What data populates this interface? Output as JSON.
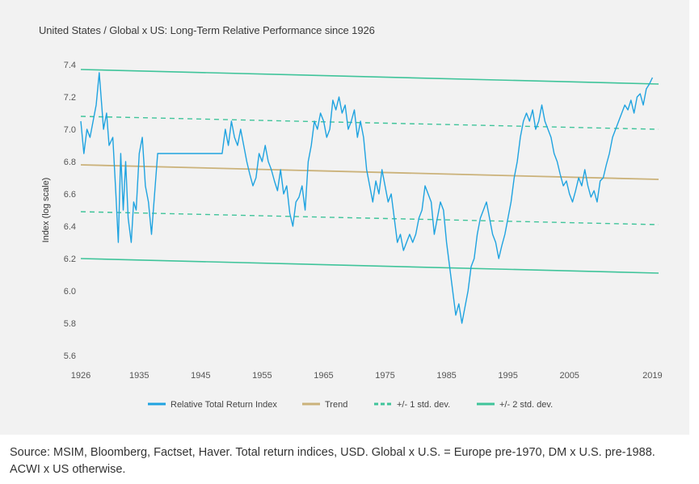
{
  "title": "United States / Global x US: Long-Term Relative Performance since 1926",
  "source": "Source: MSIM, Bloomberg, Factset, Haver. Total return indices, USD. Global x U.S. = Europe pre-1970, DM x U.S. pre-1988. ACWI x US otherwise.",
  "colors": {
    "relative": "#1fa3e0",
    "trend": "#cbb27a",
    "std1": "#3fc49a",
    "std2": "#3fc49a",
    "panel": "#f2f2f2"
  },
  "chart_data": {
    "type": "line",
    "title": "United States / Global x US: Long-Term Relative Performance since 1926",
    "xlabel": "",
    "ylabel": "Index (log scale)",
    "xlim": [
      1926,
      2020
    ],
    "ylim": [
      5.6,
      7.4
    ],
    "xticks": [
      "1926",
      "1935",
      "1945",
      "1955",
      "1965",
      "1975",
      "1985",
      "1995",
      "2005",
      "2019"
    ],
    "xtick_values": [
      1926,
      1935.5,
      1945.5,
      1955.5,
      1965.5,
      1975.5,
      1985.5,
      1995.5,
      2005.5,
      2019
    ],
    "yticks": [
      "7.4",
      "7.2",
      "7.0",
      "6.8",
      "6.6",
      "6.4",
      "6.2",
      "6.0",
      "5.8",
      "5.6"
    ],
    "ytick_values": [
      7.4,
      7.2,
      7.0,
      6.8,
      6.6,
      6.4,
      6.2,
      6.0,
      5.8,
      5.6
    ],
    "legend": [
      {
        "key": "relative",
        "label": "Relative Total Return Index",
        "style": "solid"
      },
      {
        "key": "trend",
        "label": "Trend",
        "style": "solid"
      },
      {
        "key": "std1",
        "label": "+/- 1 std. dev.",
        "style": "dashed"
      },
      {
        "key": "std2",
        "label": "+/- 2 std. dev.",
        "style": "solid"
      }
    ],
    "legend_position": "bottom",
    "series": [
      {
        "name": "Relative Total Return Index",
        "key": "relative",
        "points": [
          [
            1926.0,
            7.05
          ],
          [
            1926.5,
            6.85
          ],
          [
            1927.0,
            7.0
          ],
          [
            1927.5,
            6.95
          ],
          [
            1928.0,
            7.05
          ],
          [
            1928.5,
            7.15
          ],
          [
            1929.0,
            7.35
          ],
          [
            1929.3,
            7.2
          ],
          [
            1929.7,
            7.0
          ],
          [
            1930.2,
            7.1
          ],
          [
            1930.6,
            6.9
          ],
          [
            1931.2,
            6.95
          ],
          [
            1931.7,
            6.6
          ],
          [
            1932.1,
            6.3
          ],
          [
            1932.5,
            6.85
          ],
          [
            1932.9,
            6.5
          ],
          [
            1933.3,
            6.8
          ],
          [
            1933.7,
            6.45
          ],
          [
            1934.2,
            6.3
          ],
          [
            1934.6,
            6.55
          ],
          [
            1935.0,
            6.5
          ],
          [
            1935.5,
            6.85
          ],
          [
            1936.0,
            6.95
          ],
          [
            1936.5,
            6.65
          ],
          [
            1937.0,
            6.55
          ],
          [
            1937.5,
            6.35
          ],
          [
            1938.0,
            6.6
          ],
          [
            1938.5,
            6.85
          ],
          [
            1939.0,
            6.85
          ],
          [
            1949.0,
            6.85
          ],
          [
            1949.5,
            7.0
          ],
          [
            1950.0,
            6.9
          ],
          [
            1950.5,
            7.05
          ],
          [
            1951.0,
            6.95
          ],
          [
            1951.5,
            6.9
          ],
          [
            1952.0,
            7.0
          ],
          [
            1952.5,
            6.9
          ],
          [
            1953.0,
            6.8
          ],
          [
            1953.5,
            6.72
          ],
          [
            1954.0,
            6.65
          ],
          [
            1954.5,
            6.7
          ],
          [
            1955.0,
            6.85
          ],
          [
            1955.5,
            6.8
          ],
          [
            1956.0,
            6.9
          ],
          [
            1956.5,
            6.8
          ],
          [
            1957.0,
            6.75
          ],
          [
            1957.5,
            6.68
          ],
          [
            1958.0,
            6.62
          ],
          [
            1958.5,
            6.75
          ],
          [
            1959.0,
            6.6
          ],
          [
            1959.5,
            6.65
          ],
          [
            1960.0,
            6.48
          ],
          [
            1960.5,
            6.4
          ],
          [
            1961.0,
            6.55
          ],
          [
            1961.5,
            6.58
          ],
          [
            1962.0,
            6.65
          ],
          [
            1962.5,
            6.5
          ],
          [
            1963.0,
            6.8
          ],
          [
            1963.5,
            6.9
          ],
          [
            1964.0,
            7.05
          ],
          [
            1964.5,
            7.0
          ],
          [
            1965.0,
            7.1
          ],
          [
            1965.5,
            7.05
          ],
          [
            1966.0,
            6.95
          ],
          [
            1966.5,
            7.0
          ],
          [
            1967.0,
            7.18
          ],
          [
            1967.5,
            7.12
          ],
          [
            1968.0,
            7.2
          ],
          [
            1968.5,
            7.1
          ],
          [
            1969.0,
            7.15
          ],
          [
            1969.5,
            7.0
          ],
          [
            1970.0,
            7.05
          ],
          [
            1970.5,
            7.12
          ],
          [
            1971.0,
            6.95
          ],
          [
            1971.5,
            7.05
          ],
          [
            1972.0,
            6.95
          ],
          [
            1972.5,
            6.75
          ],
          [
            1973.0,
            6.65
          ],
          [
            1973.5,
            6.55
          ],
          [
            1974.0,
            6.68
          ],
          [
            1974.5,
            6.6
          ],
          [
            1975.0,
            6.75
          ],
          [
            1975.5,
            6.65
          ],
          [
            1976.0,
            6.55
          ],
          [
            1976.5,
            6.6
          ],
          [
            1977.0,
            6.45
          ],
          [
            1977.5,
            6.3
          ],
          [
            1978.0,
            6.35
          ],
          [
            1978.5,
            6.25
          ],
          [
            1979.0,
            6.3
          ],
          [
            1979.5,
            6.35
          ],
          [
            1980.0,
            6.3
          ],
          [
            1980.5,
            6.35
          ],
          [
            1981.0,
            6.45
          ],
          [
            1981.5,
            6.5
          ],
          [
            1982.0,
            6.65
          ],
          [
            1982.5,
            6.6
          ],
          [
            1983.0,
            6.55
          ],
          [
            1983.5,
            6.35
          ],
          [
            1984.0,
            6.45
          ],
          [
            1984.5,
            6.55
          ],
          [
            1985.0,
            6.5
          ],
          [
            1985.5,
            6.3
          ],
          [
            1986.0,
            6.15
          ],
          [
            1986.5,
            6.0
          ],
          [
            1987.0,
            5.85
          ],
          [
            1987.5,
            5.92
          ],
          [
            1988.0,
            5.8
          ],
          [
            1988.5,
            5.9
          ],
          [
            1989.0,
            6.0
          ],
          [
            1989.5,
            6.15
          ],
          [
            1990.0,
            6.2
          ],
          [
            1990.5,
            6.35
          ],
          [
            1991.0,
            6.45
          ],
          [
            1991.5,
            6.5
          ],
          [
            1992.0,
            6.55
          ],
          [
            1992.5,
            6.45
          ],
          [
            1993.0,
            6.35
          ],
          [
            1993.5,
            6.3
          ],
          [
            1994.0,
            6.2
          ],
          [
            1994.5,
            6.28
          ],
          [
            1995.0,
            6.35
          ],
          [
            1995.5,
            6.45
          ],
          [
            1996.0,
            6.55
          ],
          [
            1996.5,
            6.7
          ],
          [
            1997.0,
            6.8
          ],
          [
            1997.5,
            6.95
          ],
          [
            1998.0,
            7.05
          ],
          [
            1998.5,
            7.1
          ],
          [
            1999.0,
            7.05
          ],
          [
            1999.5,
            7.12
          ],
          [
            2000.0,
            7.0
          ],
          [
            2000.5,
            7.05
          ],
          [
            2001.0,
            7.15
          ],
          [
            2001.5,
            7.05
          ],
          [
            2002.0,
            7.0
          ],
          [
            2002.5,
            6.95
          ],
          [
            2003.0,
            6.85
          ],
          [
            2003.5,
            6.8
          ],
          [
            2004.0,
            6.72
          ],
          [
            2004.5,
            6.65
          ],
          [
            2005.0,
            6.68
          ],
          [
            2005.5,
            6.6
          ],
          [
            2006.0,
            6.55
          ],
          [
            2006.5,
            6.62
          ],
          [
            2007.0,
            6.7
          ],
          [
            2007.5,
            6.65
          ],
          [
            2008.0,
            6.75
          ],
          [
            2008.5,
            6.65
          ],
          [
            2009.0,
            6.58
          ],
          [
            2009.5,
            6.62
          ],
          [
            2010.0,
            6.55
          ],
          [
            2010.5,
            6.68
          ],
          [
            2011.0,
            6.7
          ],
          [
            2011.5,
            6.78
          ],
          [
            2012.0,
            6.85
          ],
          [
            2012.5,
            6.95
          ],
          [
            2013.0,
            7.0
          ],
          [
            2013.5,
            7.05
          ],
          [
            2014.0,
            7.1
          ],
          [
            2014.5,
            7.15
          ],
          [
            2015.0,
            7.12
          ],
          [
            2015.5,
            7.18
          ],
          [
            2016.0,
            7.1
          ],
          [
            2016.5,
            7.2
          ],
          [
            2017.0,
            7.22
          ],
          [
            2017.5,
            7.15
          ],
          [
            2018.0,
            7.25
          ],
          [
            2018.5,
            7.28
          ],
          [
            2019.0,
            7.32
          ]
        ]
      },
      {
        "name": "Trend",
        "key": "trend",
        "points": [
          [
            1926,
            6.78
          ],
          [
            2020,
            6.69
          ]
        ]
      },
      {
        "name": "+1 std. dev.",
        "key": "std1",
        "points": [
          [
            1926,
            7.08
          ],
          [
            2020,
            7.0
          ]
        ]
      },
      {
        "name": "-1 std. dev.",
        "key": "std1",
        "points": [
          [
            1926,
            6.49
          ],
          [
            2020,
            6.41
          ]
        ]
      },
      {
        "name": "+2 std. dev.",
        "key": "std2",
        "points": [
          [
            1926,
            7.37
          ],
          [
            2020,
            7.28
          ]
        ]
      },
      {
        "name": "-2 std. dev.",
        "key": "std2",
        "points": [
          [
            1926,
            6.2
          ],
          [
            2020,
            6.11
          ]
        ]
      }
    ]
  }
}
